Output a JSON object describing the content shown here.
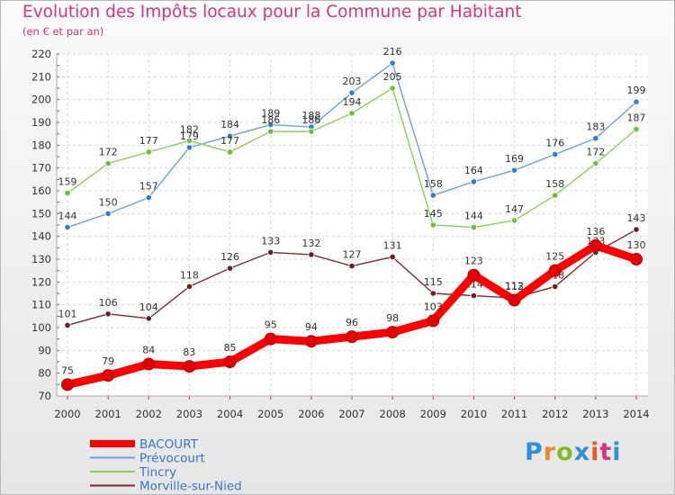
{
  "header": {
    "title": "Evolution des Impôts locaux pour la Commune par Habitant",
    "subtitle": "(en € et par an)"
  },
  "brand": {
    "parts": [
      "P",
      "r",
      "o",
      "x",
      "i",
      "t",
      "i"
    ]
  },
  "chart_data": {
    "type": "line",
    "title": "Evolution des Impôts locaux pour la Commune par Habitant",
    "subtitle": "(en € et par an)",
    "xlabel": "",
    "ylabel": "",
    "categories": [
      "2000",
      "2001",
      "2002",
      "2003",
      "2004",
      "2005",
      "2006",
      "2007",
      "2008",
      "2009",
      "2010",
      "2011",
      "2012",
      "2013",
      "2014"
    ],
    "ylim": [
      70,
      220
    ],
    "yticks": [
      70,
      80,
      90,
      100,
      110,
      120,
      130,
      140,
      150,
      160,
      170,
      180,
      190,
      200,
      210,
      220
    ],
    "grid": true,
    "legend_position": "bottom-left",
    "series": [
      {
        "name": "BACOURT",
        "color": "#ff0000",
        "marker": "#e00000",
        "bold": true,
        "values": [
          75,
          79,
          84,
          83,
          85,
          95,
          94,
          96,
          98,
          103,
          123,
          112,
          125,
          136,
          130
        ]
      },
      {
        "name": "Prévocourt",
        "color": "#6aa2d6",
        "marker": "#2e7fd0",
        "bold": false,
        "values": [
          144,
          150,
          157,
          179,
          184,
          189,
          188,
          203,
          216,
          158,
          164,
          169,
          176,
          183,
          199
        ]
      },
      {
        "name": "Tincry",
        "color": "#8ad05a",
        "marker": "#66c23a",
        "bold": false,
        "values": [
          159,
          172,
          177,
          182,
          177,
          186,
          186,
          194,
          205,
          145,
          144,
          147,
          158,
          172,
          187
        ]
      },
      {
        "name": "Morville-sur-Nied",
        "color": "#7a2a2a",
        "marker": "#6b1f1f",
        "bold": false,
        "values": [
          101,
          106,
          104,
          118,
          126,
          133,
          132,
          127,
          131,
          115,
          114,
          113,
          118,
          133,
          143
        ]
      }
    ]
  }
}
